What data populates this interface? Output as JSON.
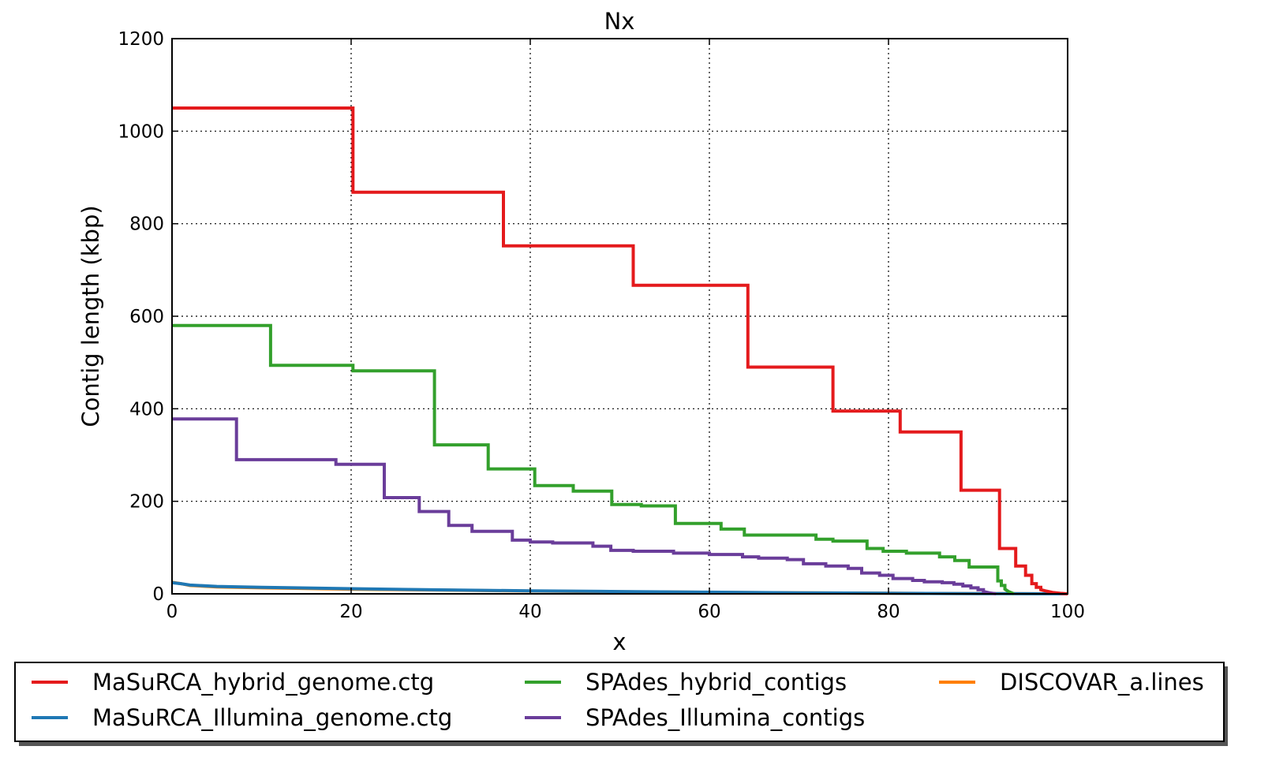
{
  "chart_data": {
    "type": "line",
    "title": "Nx",
    "xlabel": "x",
    "ylabel": "Contig length  (kbp)",
    "xlim": [
      0,
      100
    ],
    "ylim": [
      0,
      1200
    ],
    "xticks": [
      "0",
      "20",
      "40",
      "60",
      "80",
      "100"
    ],
    "yticks": [
      "0",
      "200",
      "400",
      "600",
      "800",
      "1000",
      "1200"
    ],
    "grid": true,
    "legend_position": "below plot",
    "series": [
      {
        "name": "MaSuRCA_hybrid_genome.ctg",
        "color": "#e41a1c",
        "points": [
          [
            0,
            1050
          ],
          [
            20.2,
            1050
          ],
          [
            20.2,
            868
          ],
          [
            37.0,
            868
          ],
          [
            37.0,
            752
          ],
          [
            51.5,
            752
          ],
          [
            51.5,
            667
          ],
          [
            64.3,
            667
          ],
          [
            64.3,
            490
          ],
          [
            73.8,
            490
          ],
          [
            73.8,
            395
          ],
          [
            81.3,
            395
          ],
          [
            81.3,
            350
          ],
          [
            88.1,
            350
          ],
          [
            88.1,
            224
          ],
          [
            92.4,
            224
          ],
          [
            92.4,
            98
          ],
          [
            94.2,
            98
          ],
          [
            94.2,
            60
          ],
          [
            95.3,
            60
          ],
          [
            95.3,
            40
          ],
          [
            96.0,
            40
          ],
          [
            96.0,
            22
          ],
          [
            96.5,
            22
          ],
          [
            96.5,
            14
          ],
          [
            97.0,
            14
          ],
          [
            97.0,
            9
          ],
          [
            97.6,
            6
          ],
          [
            98.3,
            3
          ],
          [
            99.2,
            1
          ],
          [
            100,
            0
          ]
        ]
      },
      {
        "name": "MaSuRCA_Illumina_genome.ctg",
        "color": "#1f78b4",
        "points": [
          [
            0,
            24
          ],
          [
            1,
            22
          ],
          [
            2,
            19
          ],
          [
            5,
            16
          ],
          [
            10,
            14
          ],
          [
            20,
            11
          ],
          [
            30,
            8.5
          ],
          [
            40,
            6.5
          ],
          [
            50,
            5
          ],
          [
            60,
            3.5
          ],
          [
            70,
            2.2
          ],
          [
            80,
            1.2
          ],
          [
            90,
            0.5
          ],
          [
            100,
            0
          ]
        ]
      },
      {
        "name": "SPAdes_hybrid_contigs",
        "color": "#33a02c",
        "points": [
          [
            0,
            580
          ],
          [
            11.0,
            580
          ],
          [
            11.0,
            494
          ],
          [
            20.2,
            494
          ],
          [
            20.2,
            482
          ],
          [
            29.3,
            482
          ],
          [
            29.3,
            322
          ],
          [
            35.3,
            322
          ],
          [
            35.3,
            270
          ],
          [
            40.5,
            270
          ],
          [
            40.5,
            234
          ],
          [
            44.8,
            234
          ],
          [
            44.8,
            222
          ],
          [
            49.1,
            222
          ],
          [
            49.1,
            193
          ],
          [
            52.4,
            193
          ],
          [
            52.4,
            190
          ],
          [
            56.2,
            190
          ],
          [
            56.2,
            152
          ],
          [
            61.3,
            152
          ],
          [
            61.3,
            140
          ],
          [
            63.9,
            140
          ],
          [
            63.9,
            127
          ],
          [
            71.9,
            127
          ],
          [
            71.9,
            118
          ],
          [
            73.8,
            118
          ],
          [
            73.8,
            114
          ],
          [
            77.6,
            114
          ],
          [
            77.6,
            98
          ],
          [
            79.4,
            98
          ],
          [
            79.4,
            92
          ],
          [
            82.0,
            92
          ],
          [
            82.0,
            88
          ],
          [
            85.7,
            88
          ],
          [
            85.7,
            80
          ],
          [
            87.4,
            80
          ],
          [
            87.4,
            72
          ],
          [
            89.0,
            72
          ],
          [
            89.0,
            58
          ],
          [
            92.2,
            58
          ],
          [
            92.2,
            28
          ],
          [
            92.6,
            28
          ],
          [
            92.6,
            18
          ],
          [
            93.0,
            18
          ],
          [
            93.0,
            10
          ],
          [
            93.4,
            5
          ],
          [
            94.0,
            0
          ]
        ]
      },
      {
        "name": "SPAdes_Illumina_contigs",
        "color": "#6a3d9a",
        "points": [
          [
            0,
            378
          ],
          [
            7.2,
            378
          ],
          [
            7.2,
            290
          ],
          [
            18.3,
            290
          ],
          [
            18.3,
            280
          ],
          [
            23.7,
            280
          ],
          [
            23.7,
            208
          ],
          [
            27.6,
            208
          ],
          [
            27.6,
            178
          ],
          [
            30.9,
            178
          ],
          [
            30.9,
            148
          ],
          [
            33.5,
            148
          ],
          [
            33.5,
            135
          ],
          [
            38.0,
            135
          ],
          [
            38.0,
            116
          ],
          [
            40.0,
            116
          ],
          [
            40.0,
            112
          ],
          [
            42.5,
            112
          ],
          [
            42.5,
            110
          ],
          [
            47.0,
            110
          ],
          [
            47.0,
            103
          ],
          [
            49.0,
            103
          ],
          [
            49.0,
            94
          ],
          [
            51.5,
            94
          ],
          [
            51.5,
            92
          ],
          [
            56.0,
            92
          ],
          [
            56.0,
            88
          ],
          [
            60.0,
            88
          ],
          [
            60.0,
            85
          ],
          [
            63.7,
            85
          ],
          [
            63.7,
            80
          ],
          [
            65.5,
            80
          ],
          [
            65.5,
            77
          ],
          [
            68.7,
            77
          ],
          [
            68.7,
            74
          ],
          [
            70.5,
            74
          ],
          [
            70.5,
            65
          ],
          [
            73.0,
            65
          ],
          [
            73.0,
            60
          ],
          [
            75.5,
            60
          ],
          [
            75.5,
            55
          ],
          [
            77.0,
            55
          ],
          [
            77.0,
            45
          ],
          [
            79.0,
            45
          ],
          [
            79.0,
            40
          ],
          [
            80.5,
            40
          ],
          [
            80.5,
            33
          ],
          [
            82.7,
            33
          ],
          [
            82.7,
            29
          ],
          [
            84.0,
            29
          ],
          [
            84.0,
            26
          ],
          [
            86.0,
            26
          ],
          [
            86.0,
            24
          ],
          [
            87.3,
            24
          ],
          [
            87.3,
            21
          ],
          [
            88.3,
            21
          ],
          [
            88.3,
            17
          ],
          [
            89.2,
            17
          ],
          [
            89.2,
            13
          ],
          [
            90.0,
            13
          ],
          [
            90.0,
            9
          ],
          [
            90.6,
            9
          ],
          [
            90.6,
            5
          ],
          [
            91.3,
            2
          ],
          [
            92.0,
            0
          ]
        ]
      },
      {
        "name": "DISCOVAR_a.lines",
        "color": "#ff7f00",
        "points": [
          [
            0,
            25
          ],
          [
            1,
            22
          ],
          [
            2,
            18
          ],
          [
            5,
            15
          ],
          [
            10,
            13
          ],
          [
            20,
            10
          ],
          [
            30,
            8
          ],
          [
            40,
            6
          ],
          [
            50,
            4.5
          ],
          [
            60,
            3.3
          ],
          [
            70,
            2.2
          ],
          [
            80,
            1.2
          ],
          [
            90,
            0.5
          ],
          [
            100,
            0
          ]
        ]
      }
    ]
  }
}
